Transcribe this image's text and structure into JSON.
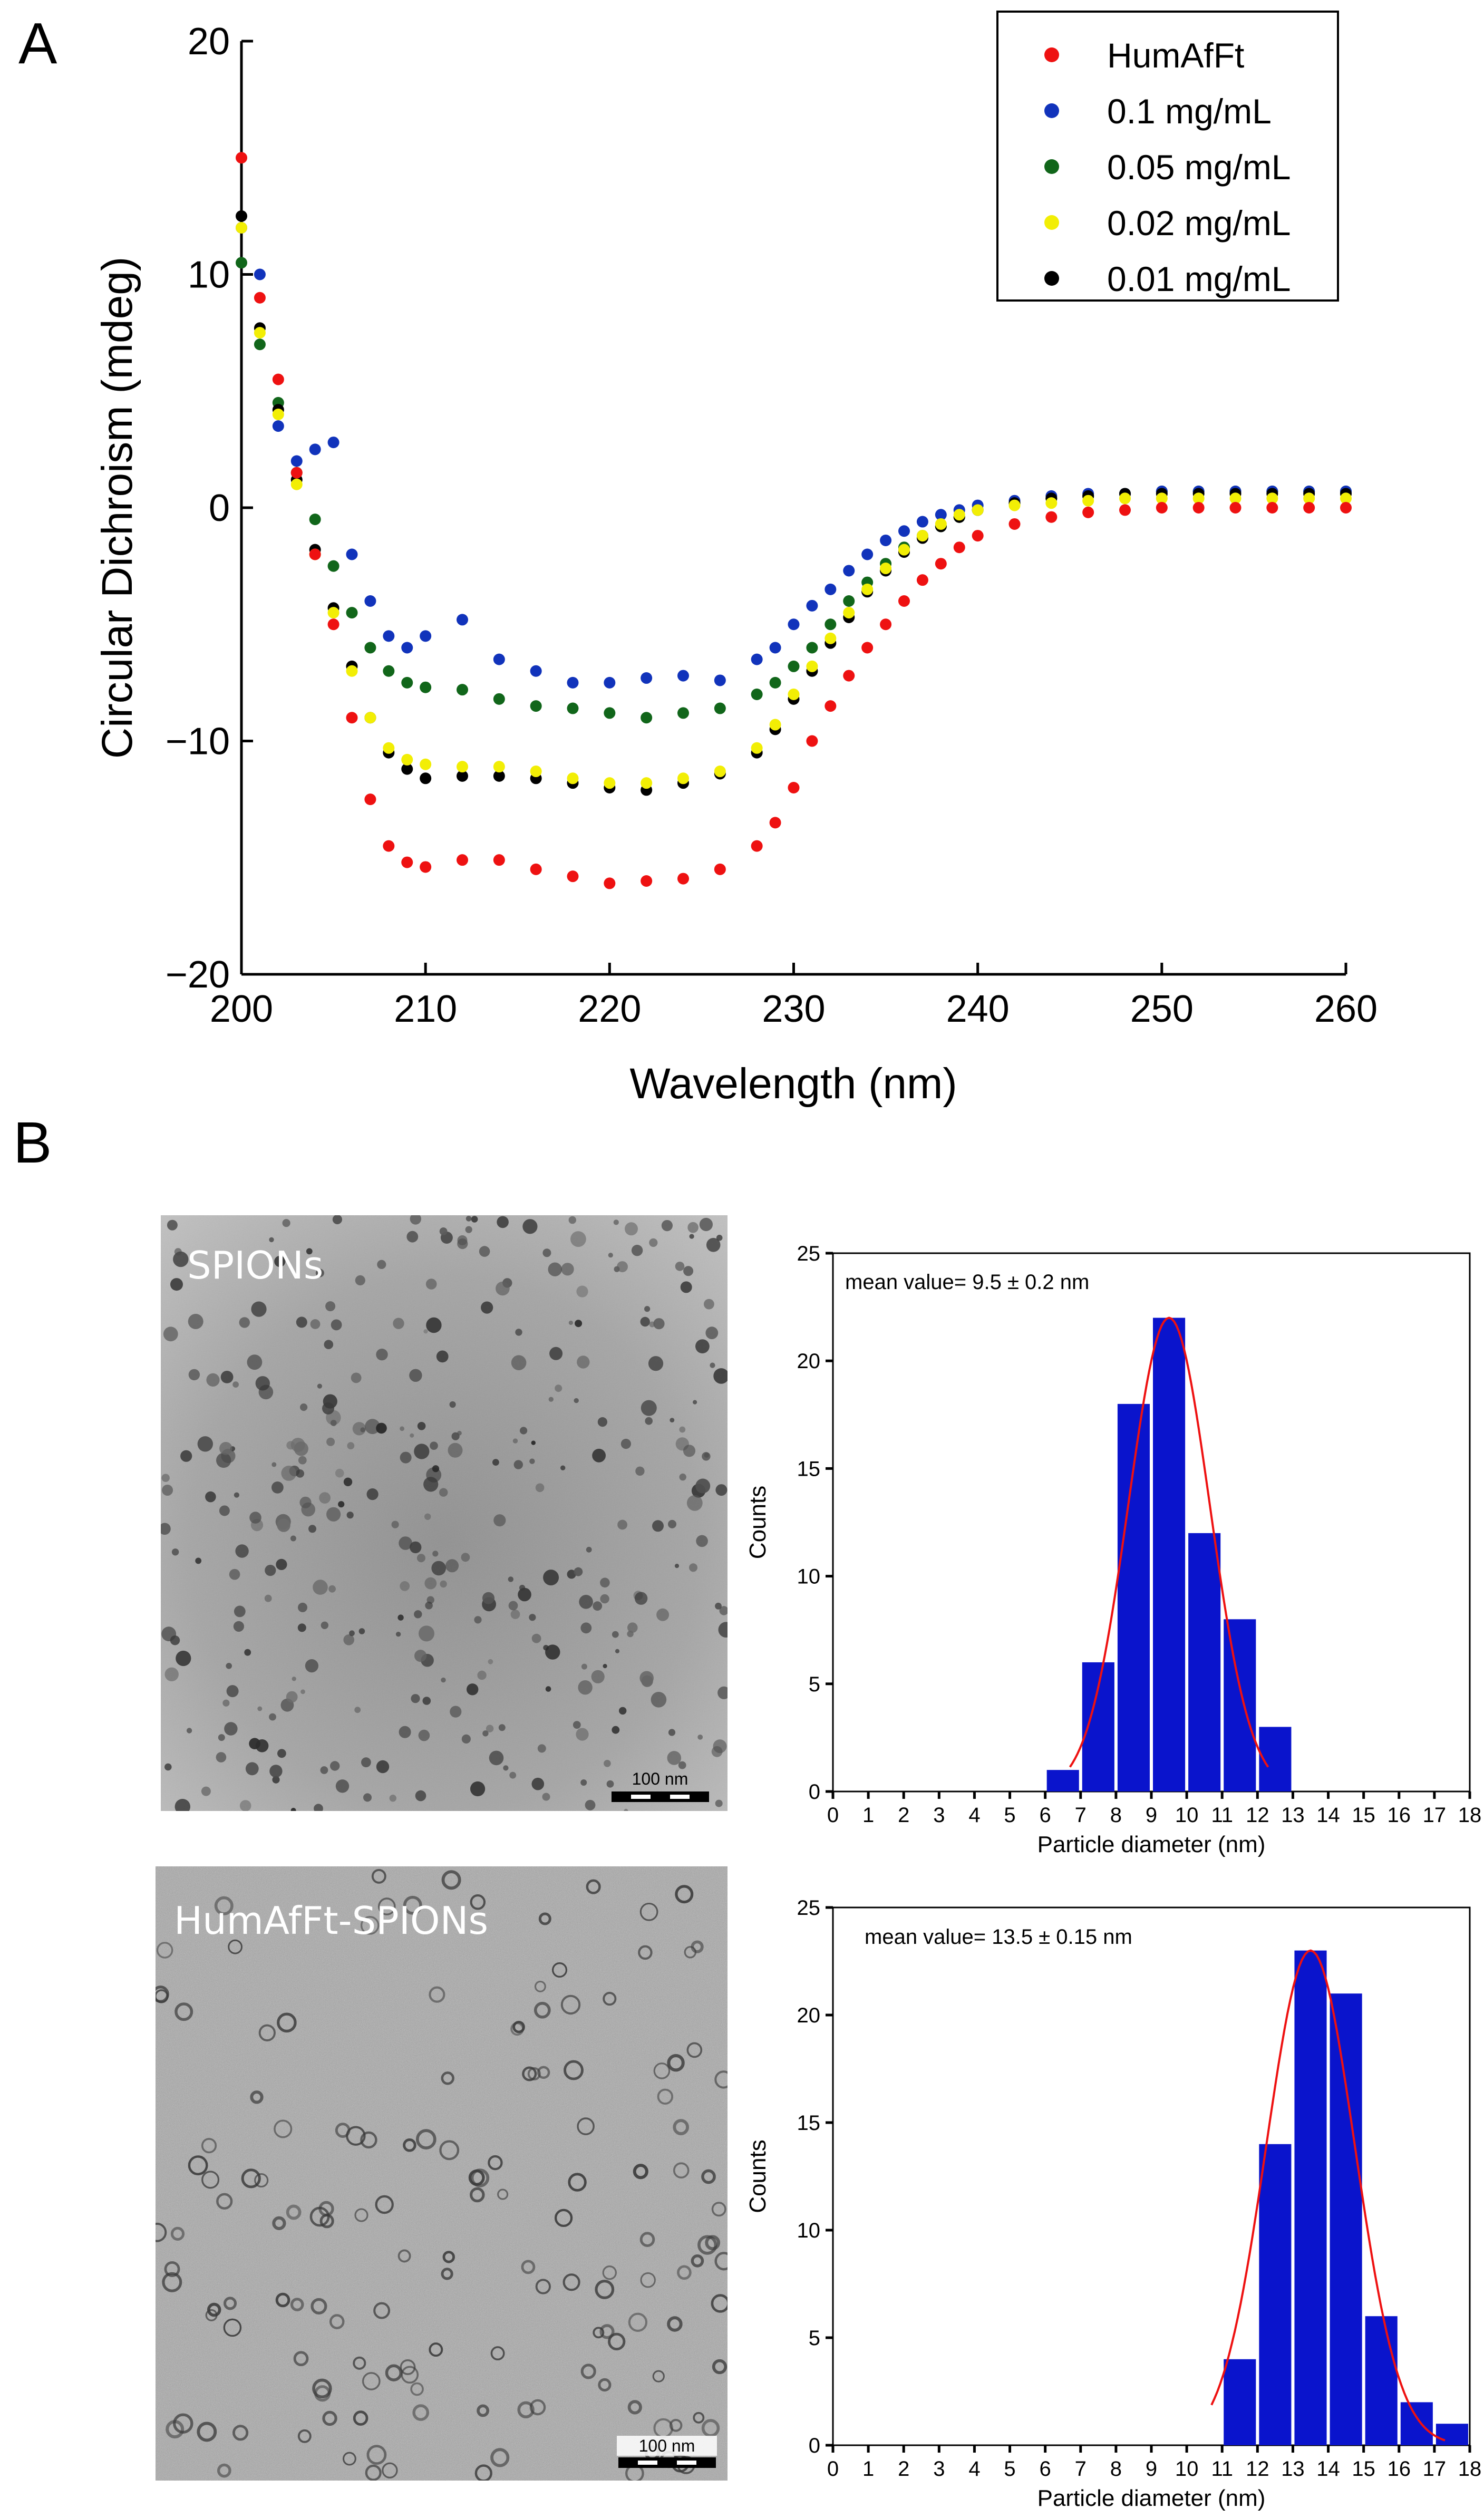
{
  "panels": {
    "a_letter": "A",
    "b_letter": "B"
  },
  "tem_images": [
    {
      "label": "SPIONs",
      "scale_label": "100 nm"
    },
    {
      "label": "HumAfFt-SPIONs",
      "scale_label": "100 nm"
    }
  ],
  "colors": {
    "red": "#ee1111",
    "blue": "#1133bb",
    "green": "#11661a",
    "yellow": "#f2ee05",
    "black": "#000000",
    "bar": "#0a14cc",
    "fit": "#ee1111"
  },
  "chart_data": [
    {
      "type": "scatter",
      "title": "",
      "xlabel": "Wavelength (nm)",
      "ylabel": "Circular Dichroism (mdeg)",
      "xlim": [
        200,
        260
      ],
      "ylim": [
        -20,
        20
      ],
      "xticks": [
        200,
        210,
        220,
        230,
        240,
        250,
        260
      ],
      "yticks": [
        -20,
        -10,
        0,
        10,
        20
      ],
      "ytick_labels": [
        "−20",
        "−10",
        "0",
        "10",
        "20"
      ],
      "legend_position": "top-right",
      "x": [
        200,
        201,
        202,
        203,
        204,
        205,
        206,
        207,
        208,
        209,
        210,
        212,
        214,
        216,
        218,
        220,
        222,
        224,
        226,
        228,
        229,
        230,
        231,
        232,
        233,
        234,
        235,
        236,
        237,
        238,
        239,
        240,
        242,
        244,
        246,
        248,
        250,
        252,
        254,
        256,
        258,
        260
      ],
      "series": [
        {
          "name": "HumAfFt",
          "color": "red",
          "values": [
            15,
            9,
            5.5,
            1.5,
            -2,
            -5,
            -9,
            -12.5,
            -14.5,
            -15.2,
            -15.4,
            -15.1,
            -15.1,
            -15.5,
            -15.8,
            -16.1,
            -16,
            -15.9,
            -15.5,
            -14.5,
            -13.5,
            -12,
            -10,
            -8.5,
            -7.2,
            -6,
            -5,
            -4,
            -3.1,
            -2.4,
            -1.7,
            -1.2,
            -0.7,
            -0.4,
            -0.2,
            -0.1,
            0,
            0,
            0,
            0,
            0,
            0
          ]
        },
        {
          "name": "0.1 mg/mL",
          "color": "blue",
          "values": [
            12,
            10,
            3.5,
            2,
            2.5,
            2.8,
            -2,
            -4,
            -5.5,
            -6,
            -5.5,
            -4.8,
            -6.5,
            -7,
            -7.5,
            -7.5,
            -7.3,
            -7.2,
            -7.4,
            -6.5,
            -6,
            -5,
            -4.2,
            -3.5,
            -2.7,
            -2,
            -1.4,
            -1,
            -0.6,
            -0.3,
            -0.1,
            0.1,
            0.3,
            0.5,
            0.6,
            0.6,
            0.7,
            0.7,
            0.7,
            0.7,
            0.7,
            0.7
          ]
        },
        {
          "name": "0.05 mg/mL",
          "color": "green",
          "values": [
            10.5,
            7,
            4.5,
            1.5,
            -0.5,
            -2.5,
            -4.5,
            -6,
            -7,
            -7.5,
            -7.7,
            -7.8,
            -8.2,
            -8.5,
            -8.6,
            -8.8,
            -9,
            -8.8,
            -8.6,
            -8,
            -7.5,
            -6.8,
            -6,
            -5,
            -4,
            -3.2,
            -2.4,
            -1.7,
            -1.2,
            -0.8,
            -0.4,
            -0.1,
            0.2,
            0.4,
            0.5,
            0.6,
            0.7,
            0.7,
            0.7,
            0.7,
            0.7,
            0.7
          ]
        },
        {
          "name": "0.02 mg/mL",
          "color": "yellow",
          "values": [
            12,
            7.5,
            4,
            1,
            -2,
            -4.5,
            -7,
            -9,
            -10.3,
            -10.8,
            -11,
            -11.1,
            -11.1,
            -11.3,
            -11.6,
            -11.8,
            -11.8,
            -11.6,
            -11.3,
            -10.3,
            -9.3,
            -8,
            -6.8,
            -5.6,
            -4.5,
            -3.5,
            -2.6,
            -1.8,
            -1.2,
            -0.7,
            -0.3,
            -0.1,
            0.1,
            0.2,
            0.3,
            0.4,
            0.4,
            0.4,
            0.4,
            0.4,
            0.4,
            0.4
          ]
        },
        {
          "name": "0.01 mg/mL",
          "color": "black",
          "values": [
            12.5,
            7.7,
            4.2,
            1.2,
            -1.8,
            -4.3,
            -6.8,
            -9,
            -10.5,
            -11.2,
            -11.6,
            -11.5,
            -11.5,
            -11.6,
            -11.8,
            -12,
            -12.1,
            -11.8,
            -11.4,
            -10.5,
            -9.5,
            -8.2,
            -7,
            -5.8,
            -4.7,
            -3.6,
            -2.7,
            -1.9,
            -1.3,
            -0.8,
            -0.4,
            -0.1,
            0.2,
            0.4,
            0.5,
            0.6,
            0.6,
            0.6,
            0.6,
            0.6,
            0.6,
            0.6
          ]
        }
      ]
    },
    {
      "type": "bar",
      "title": "",
      "xlabel": "Particle diameter (nm)",
      "ylabel": "Counts",
      "annotation": "mean value=  9.5 ± 0.2 nm",
      "xlim": [
        0,
        18
      ],
      "ylim": [
        0,
        25
      ],
      "xticks": [
        0,
        1,
        2,
        3,
        4,
        5,
        6,
        7,
        8,
        9,
        10,
        11,
        12,
        13,
        14,
        15,
        16,
        17,
        18
      ],
      "yticks": [
        0,
        5,
        10,
        15,
        20,
        25
      ],
      "bin_centers": [
        6.5,
        7.5,
        8.5,
        9.5,
        10.5,
        11.5,
        12.5
      ],
      "values": [
        1,
        6,
        18,
        22,
        12,
        8,
        3
      ],
      "fit": {
        "type": "gaussian",
        "center": 9.5,
        "amplitude": 22,
        "sigma": 1.15,
        "x_range": [
          6.7,
          12.3
        ]
      }
    },
    {
      "type": "bar",
      "title": "",
      "xlabel": "Particle diameter (nm)",
      "ylabel": "Counts",
      "annotation": "mean value= 13.5 ± 0.15 nm",
      "xlim": [
        0,
        18
      ],
      "ylim": [
        0,
        25
      ],
      "xticks": [
        0,
        1,
        2,
        3,
        4,
        5,
        6,
        7,
        8,
        9,
        10,
        11,
        12,
        13,
        14,
        15,
        16,
        17,
        18
      ],
      "yticks": [
        0,
        5,
        10,
        15,
        20,
        25
      ],
      "bin_centers": [
        10.5,
        11.5,
        12.5,
        13.5,
        14.5,
        15.5,
        16.5,
        17.5
      ],
      "values": [
        0,
        4,
        14,
        23,
        21,
        6,
        2,
        1
      ],
      "fit": {
        "type": "gaussian",
        "center": 13.5,
        "amplitude": 23,
        "sigma": 1.25,
        "x_range": [
          10.7,
          17.3
        ]
      }
    }
  ]
}
